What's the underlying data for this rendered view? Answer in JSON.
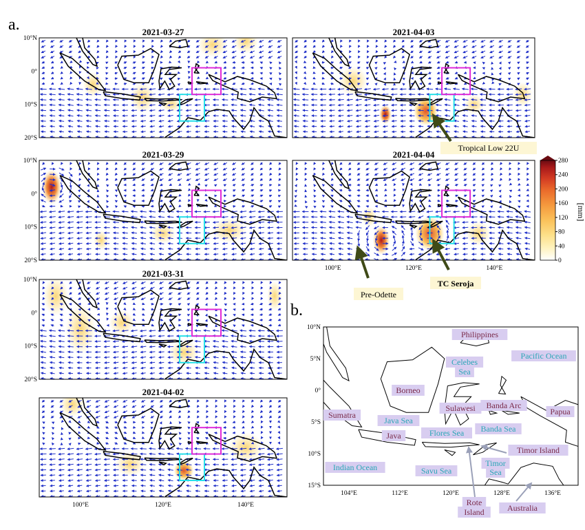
{
  "panel_a_label": "a.",
  "panel_b_label": "b.",
  "panel_titles": [
    "2021-03-27",
    "2021-04-03",
    "2021-03-29",
    "2021-04-04",
    "2021-03-31",
    "2021-04-02"
  ],
  "lat_ticks": [
    "10°N",
    "0°",
    "10°S",
    "20°S"
  ],
  "lon_ticks": [
    "100°E",
    "120°E",
    "140°E"
  ],
  "colorbar": {
    "unit": "[mm]",
    "ticks": [
      "0",
      "40",
      "80",
      "120",
      "160",
      "200",
      "240",
      "280"
    ],
    "colors": [
      "#ffffff",
      "#fff3c0",
      "#fde08a",
      "#fbc15a",
      "#f59a3e",
      "#ea6b2b",
      "#d33b23",
      "#a81a1a",
      "#6b0b12"
    ]
  },
  "annotations": {
    "tropical_low": "Tropical Low 22U",
    "tc_seroja": "TC Seroja",
    "pre_odette": "Pre-Odette"
  },
  "map_b": {
    "lat_ticks": [
      "10°N",
      "5°N",
      "0°",
      "5°S",
      "10°S",
      "15°S"
    ],
    "lon_ticks": [
      "104°E",
      "112°E",
      "120°E",
      "128°E",
      "136°E"
    ],
    "labels": {
      "philippines": "Philippines",
      "pacific": "Pacific Ocean",
      "celebes": "Celebes",
      "celebes2": "Sea",
      "borneo": "Borneo",
      "sulawesi": "Sulawesi",
      "banda_arc": "Banda Arc",
      "papua": "Papua",
      "sumatra": "Sumatra",
      "java_sea": "Java Sea",
      "flores_sea": "Flores Sea",
      "banda_sea": "Banda Sea",
      "java": "Java",
      "timor_island": "Timor Island",
      "indian_ocean": "Indian Ocean",
      "savu_sea": "Savu Sea",
      "timor_sea": "Timor",
      "timor_sea2": "Sea",
      "rote": "Rote",
      "rote2": "Island",
      "australia": "Australia"
    }
  },
  "colors": {
    "arrows": "#1f2fc8",
    "cyan_box": "#27e0e8",
    "magenta_box": "#e02ad8",
    "annotation_arrow": "#3f4a17",
    "label_purple_bg": "#d8cdf0",
    "label_purple_text": "#7a2a4a",
    "label_cyan_text": "#2aa6b6"
  }
}
